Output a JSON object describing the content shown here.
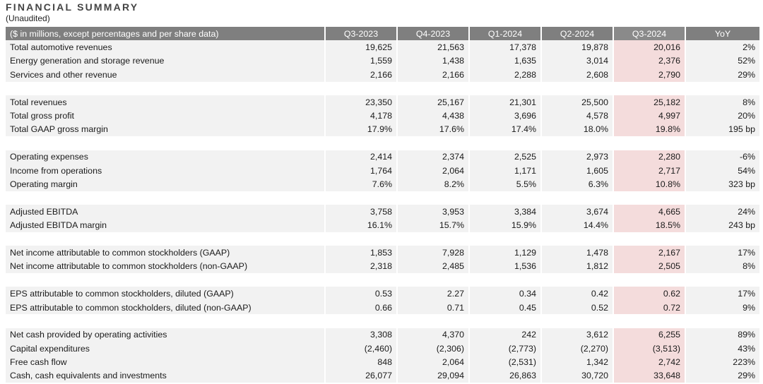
{
  "title": "FINANCIAL SUMMARY",
  "subtitle": "(Unaudited)",
  "header": {
    "label": "($ in millions, except percentages and per share data)",
    "periods": [
      "Q3-2023",
      "Q4-2023",
      "Q1-2024",
      "Q2-2024",
      "Q3-2024"
    ],
    "yoy": "YoY"
  },
  "groups": [
    [
      {
        "label": "Total automotive revenues",
        "values": [
          "19,625",
          "21,563",
          "17,378",
          "19,878",
          "20,016"
        ],
        "yoy": "2%"
      },
      {
        "label": "Energy generation and storage revenue",
        "values": [
          "1,559",
          "1,438",
          "1,635",
          "3,014",
          "2,376"
        ],
        "yoy": "52%"
      },
      {
        "label": "Services and other revenue",
        "values": [
          "2,166",
          "2,166",
          "2,288",
          "2,608",
          "2,790"
        ],
        "yoy": "29%"
      }
    ],
    [
      {
        "label": "Total revenues",
        "values": [
          "23,350",
          "25,167",
          "21,301",
          "25,500",
          "25,182"
        ],
        "yoy": "8%"
      },
      {
        "label": "Total gross profit",
        "values": [
          "4,178",
          "4,438",
          "3,696",
          "4,578",
          "4,997"
        ],
        "yoy": "20%"
      },
      {
        "label": "Total GAAP gross margin",
        "values": [
          "17.9%",
          "17.6%",
          "17.4%",
          "18.0%",
          "19.8%"
        ],
        "yoy": "195 bp"
      }
    ],
    [
      {
        "label": "Operating expenses",
        "values": [
          "2,414",
          "2,374",
          "2,525",
          "2,973",
          "2,280"
        ],
        "yoy": "-6%"
      },
      {
        "label": "Income from operations",
        "values": [
          "1,764",
          "2,064",
          "1,171",
          "1,605",
          "2,717"
        ],
        "yoy": "54%"
      },
      {
        "label": "Operating margin",
        "values": [
          "7.6%",
          "8.2%",
          "5.5%",
          "6.3%",
          "10.8%"
        ],
        "yoy": "323 bp"
      }
    ],
    [
      {
        "label": "Adjusted EBITDA",
        "values": [
          "3,758",
          "3,953",
          "3,384",
          "3,674",
          "4,665"
        ],
        "yoy": "24%"
      },
      {
        "label": "Adjusted EBITDA margin",
        "values": [
          "16.1%",
          "15.7%",
          "15.9%",
          "14.4%",
          "18.5%"
        ],
        "yoy": "243 bp"
      }
    ],
    [
      {
        "label": "Net income attributable to common stockholders (GAAP)",
        "values": [
          "1,853",
          "7,928",
          "1,129",
          "1,478",
          "2,167"
        ],
        "yoy": "17%"
      },
      {
        "label": "Net income attributable to common stockholders (non-GAAP)",
        "values": [
          "2,318",
          "2,485",
          "1,536",
          "1,812",
          "2,505"
        ],
        "yoy": "8%"
      }
    ],
    [
      {
        "label": "EPS attributable to common stockholders, diluted (GAAP)",
        "values": [
          "0.53",
          "2.27",
          "0.34",
          "0.42",
          "0.62"
        ],
        "yoy": "17%"
      },
      {
        "label": "EPS attributable to common stockholders, diluted (non-GAAP)",
        "values": [
          "0.66",
          "0.71",
          "0.45",
          "0.52",
          "0.72"
        ],
        "yoy": "9%"
      }
    ],
    [
      {
        "label": "Net cash provided by operating activities",
        "values": [
          "3,308",
          "4,370",
          "242",
          "3,612",
          "6,255"
        ],
        "yoy": "89%"
      },
      {
        "label": "Capital expenditures",
        "values": [
          "(2,460)",
          "(2,306)",
          "(2,773)",
          "(2,270)",
          "(3,513)"
        ],
        "yoy": "43%"
      },
      {
        "label": "Free cash flow",
        "values": [
          "848",
          "2,064",
          "(2,531)",
          "1,342",
          "2,742"
        ],
        "yoy": "223%"
      },
      {
        "label": "Cash, cash equivalents and investments",
        "values": [
          "26,077",
          "29,094",
          "26,863",
          "30,720",
          "33,648"
        ],
        "yoy": "29%"
      }
    ]
  ],
  "colors": {
    "header_bg": "#7f7f7f",
    "row_bg": "#f2f2f2",
    "highlight_bg": "#f4dcdc"
  }
}
